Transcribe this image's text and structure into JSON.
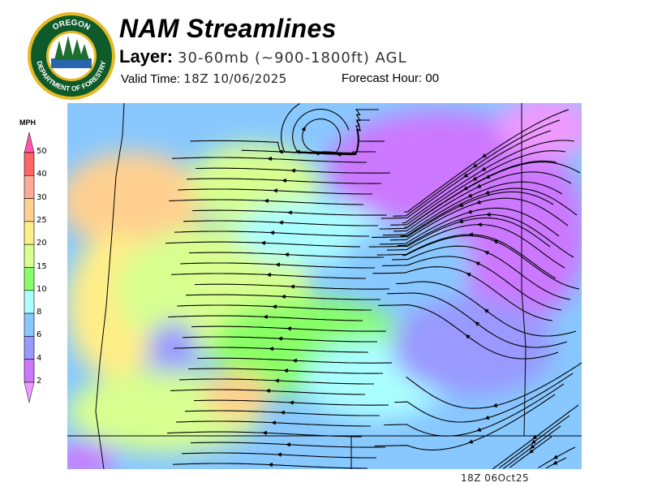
{
  "header": {
    "title": "NAM Streamlines",
    "layer_label": "Layer:",
    "layer_value": "30-60mb (~900-1800ft) AGL",
    "valid_time_label": "Valid Time:",
    "valid_time": "18Z 10/06/2025",
    "forecast_hour_label": "Forecast Hour:",
    "forecast_hour": "00"
  },
  "logo": {
    "text_top": "OREGON",
    "text_bottom": "DEPARTMENT OF FORESTRY",
    "colors": {
      "ring": "#e8b923",
      "inner": "#0f5a2a"
    }
  },
  "legend": {
    "unit": "MPH",
    "ticks": [
      "50",
      "40",
      "30",
      "25",
      "20",
      "15",
      "10",
      "8",
      "6",
      "4",
      "2"
    ],
    "colors": [
      "#ff6666",
      "#ffaa99",
      "#ffd090",
      "#ffee88",
      "#d8ff90",
      "#88ff66",
      "#aaffff",
      "#88c8ff",
      "#9999ff",
      "#cc77ff"
    ],
    "top_arrow_color": "#ff55aa",
    "bottom_arrow_color": "#ee99ff"
  },
  "map": {
    "stamp": "18Z 06Oct25"
  }
}
